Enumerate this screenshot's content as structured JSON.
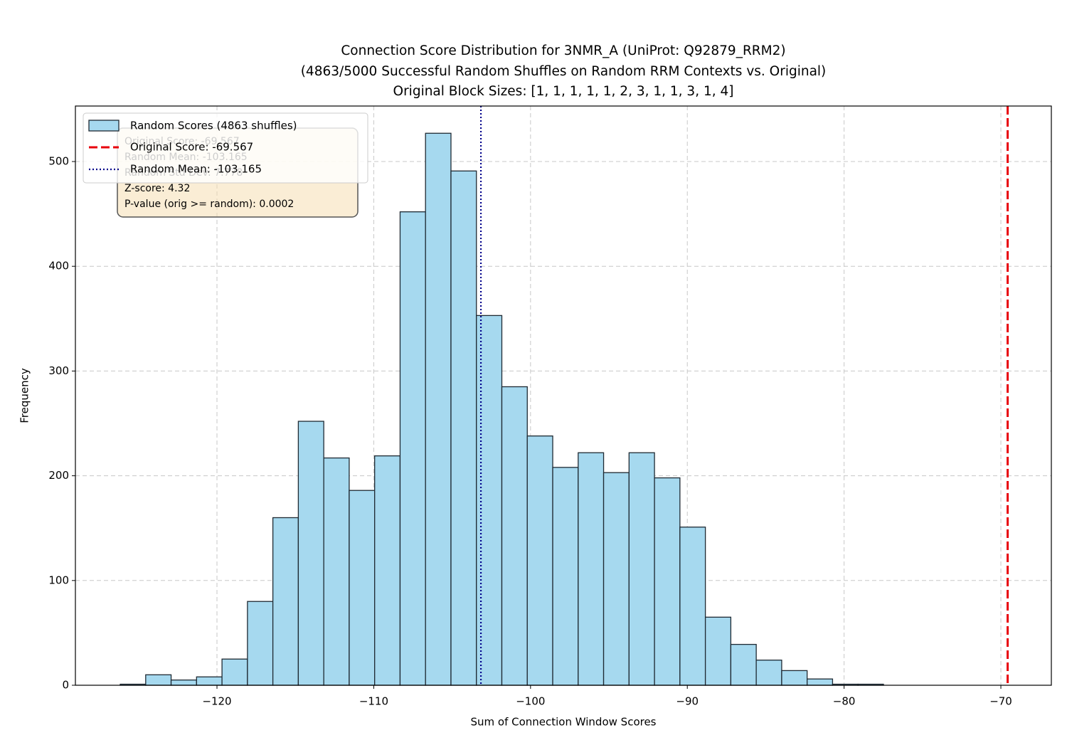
{
  "chart_data": {
    "type": "histogram",
    "title": [
      "Connection Score Distribution for 3NMR_A (UniProt: Q92879_RRM2)",
      "(4863/5000 Successful Random Shuffles on Random RRM Contexts vs. Original)",
      "Original Block Sizes: [1, 1, 1, 1, 1, 2, 3, 1, 1, 3, 1, 4]"
    ],
    "xlabel": "Sum of Connection Window Scores",
    "ylabel": "Frequency",
    "bins": [
      -126.17,
      -124.547,
      -122.925,
      -121.302,
      -119.679,
      -118.056,
      -116.434,
      -114.811,
      -113.188,
      -111.566,
      -109.943,
      -108.32,
      -106.698,
      -105.075,
      -103.452,
      -101.83,
      -100.207,
      -98.584,
      -96.961,
      -95.339,
      -93.716,
      -92.093,
      -90.471,
      -88.848,
      -87.225,
      -85.603,
      -83.98,
      -82.357,
      -80.735,
      -79.112,
      -77.489
    ],
    "series": [
      {
        "name": "Random Scores (4863 shuffles)",
        "color": "#a6d9ef",
        "values": [
          1,
          10,
          5,
          8,
          25,
          80,
          160,
          252,
          217,
          186,
          219,
          452,
          527,
          491,
          353,
          285,
          238,
          208,
          222,
          203,
          222,
          198,
          151,
          65,
          39,
          24,
          14,
          6,
          1,
          1
        ]
      }
    ],
    "vlines": [
      {
        "name": "Original Score: -69.567",
        "value": -69.567,
        "color": "#e8000b",
        "style": "dashed"
      },
      {
        "name": "Random Mean: -103.165",
        "value": -103.165,
        "color": "#00008b",
        "style": "dotted"
      }
    ],
    "stats_box": [
      "Original Score: -69.567",
      "Random Mean: -103.165",
      "Random Std Dev: 7.778",
      "Z-score: 4.32",
      "P-value (orig >= random): 0.0002"
    ],
    "xlim": [
      -129.03,
      -66.78
    ],
    "ylim": [
      0,
      553
    ],
    "xticks": [
      {
        "value": -120,
        "label": "−120"
      },
      {
        "value": -110,
        "label": "−110"
      },
      {
        "value": -100,
        "label": "−100"
      },
      {
        "value": -90,
        "label": "−90"
      },
      {
        "value": -80,
        "label": "−80"
      },
      {
        "value": -70,
        "label": "−70"
      }
    ],
    "yticks": [
      0,
      100,
      200,
      300,
      400,
      500
    ],
    "grid": true,
    "legend": "upper left"
  }
}
